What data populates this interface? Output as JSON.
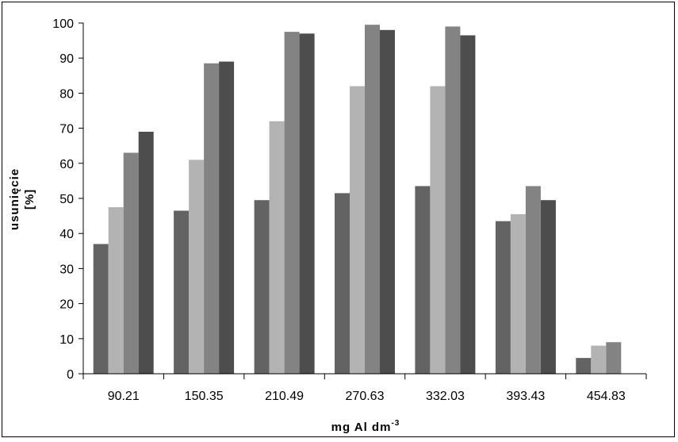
{
  "chart_data": {
    "type": "bar",
    "title": "",
    "xlabel_main": "mg Al dm",
    "xlabel_sup": "-3",
    "ylabel_line1": "usunięcie",
    "ylabel_line2": "[%]",
    "ylim": [
      0,
      100
    ],
    "yticks": [
      "0",
      "10",
      "20",
      "30",
      "40",
      "50",
      "60",
      "70",
      "80",
      "90",
      "100"
    ],
    "categories": [
      "90.21",
      "150.35",
      "210.49",
      "270.63",
      "332.03",
      "393.43",
      "454.83"
    ],
    "legend": "none",
    "grid": false,
    "series": [
      {
        "color": "#636363",
        "values": [
          37,
          46.5,
          49.5,
          51.5,
          53.5,
          43.5,
          4.5
        ]
      },
      {
        "color": "#b3b3b3",
        "values": [
          47.5,
          61,
          72,
          82,
          82,
          45.5,
          8
        ]
      },
      {
        "color": "#838383",
        "values": [
          63,
          88.5,
          97.5,
          99.5,
          99,
          53.5,
          9
        ]
      },
      {
        "color": "#4d4d4d",
        "values": [
          69,
          89,
          97,
          98,
          96.5,
          49.5,
          null
        ]
      }
    ]
  }
}
